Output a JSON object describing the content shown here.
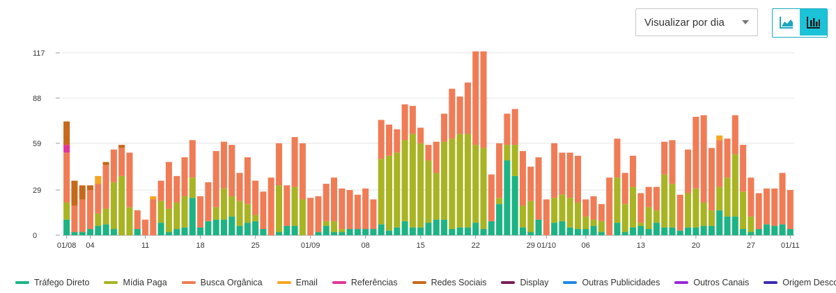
{
  "toolbar": {
    "view_select": {
      "value": "Visualizar por dia"
    },
    "view_toggle": [
      {
        "icon": "area-chart-icon",
        "active": false
      },
      {
        "icon": "bar-chart-icon",
        "active": true
      }
    ]
  },
  "chart_data": {
    "type": "bar",
    "stacked": true,
    "yticks": [
      0,
      29,
      59,
      88,
      117
    ],
    "ylim": [
      0,
      117
    ],
    "grid": true,
    "legend_position": "bottom",
    "xtick_labels": [
      {
        "i": 0,
        "label": "01/08"
      },
      {
        "i": 3,
        "label": "04"
      },
      {
        "i": 10,
        "label": "11"
      },
      {
        "i": 17,
        "label": "18"
      },
      {
        "i": 24,
        "label": "25"
      },
      {
        "i": 31,
        "label": "01/09"
      },
      {
        "i": 38,
        "label": "08"
      },
      {
        "i": 45,
        "label": "15"
      },
      {
        "i": 52,
        "label": "22"
      },
      {
        "i": 59,
        "label": "29"
      },
      {
        "i": 61,
        "label": "01/10"
      },
      {
        "i": 66,
        "label": "06"
      },
      {
        "i": 73,
        "label": "13"
      },
      {
        "i": 80,
        "label": "20"
      },
      {
        "i": 87,
        "label": "27"
      },
      {
        "i": 92,
        "label": "01/11"
      }
    ],
    "series": [
      {
        "name": "Tráfego Direto",
        "color": "#1db384",
        "values": [
          10,
          2,
          2,
          4,
          6,
          7,
          4,
          0,
          0,
          4,
          0,
          0,
          8,
          2,
          4,
          5,
          24,
          5,
          9,
          10,
          10,
          12,
          6,
          8,
          9,
          4,
          0,
          2,
          6,
          6,
          0,
          0,
          2,
          6,
          2,
          2,
          4,
          4,
          4,
          4,
          7,
          3,
          5,
          9,
          5,
          5,
          8,
          10,
          10,
          4,
          5,
          5,
          8,
          4,
          9,
          20,
          48,
          38,
          5,
          2,
          10,
          0,
          8,
          9,
          5,
          4,
          4,
          6,
          2,
          0,
          8,
          2,
          5,
          6,
          4,
          8,
          5,
          5,
          3,
          5,
          5,
          6,
          6,
          16,
          12,
          12,
          4,
          2,
          4,
          7,
          6,
          7,
          4
        ]
      },
      {
        "name": "Mídia Paga",
        "color": "#a8b422",
        "values": [
          11,
          0,
          0,
          0,
          8,
          10,
          30,
          38,
          18,
          0,
          0,
          0,
          14,
          15,
          17,
          20,
          13,
          0,
          0,
          8,
          20,
          13,
          16,
          12,
          4,
          0,
          0,
          30,
          0,
          25,
          23,
          0,
          0,
          3,
          7,
          2,
          0,
          0,
          0,
          0,
          42,
          48,
          48,
          52,
          60,
          54,
          40,
          30,
          50,
          58,
          60,
          60,
          50,
          52,
          0,
          4,
          10,
          20,
          14,
          20,
          0,
          0,
          16,
          17,
          19,
          17,
          8,
          4,
          7,
          0,
          29,
          18,
          26,
          2,
          14,
          8,
          34,
          28,
          0,
          22,
          25,
          15,
          10,
          15,
          25,
          40,
          24,
          10,
          0,
          0,
          0,
          0,
          0
        ]
      },
      {
        "name": "Busca Orgânica",
        "color": "#f07c56",
        "values": [
          32,
          17,
          21,
          25,
          19,
          28,
          21,
          18,
          35,
          12,
          10,
          23,
          13,
          30,
          17,
          25,
          24,
          20,
          25,
          36,
          30,
          33,
          18,
          30,
          22,
          24,
          37,
          27,
          26,
          32,
          36,
          24,
          23,
          24,
          28,
          26,
          25,
          22,
          26,
          19,
          25,
          20,
          15,
          23,
          18,
          10,
          10,
          20,
          18,
          32,
          24,
          33,
          60,
          62,
          30,
          35,
          20,
          23,
          35,
          22,
          40,
          23,
          35,
          27,
          29,
          30,
          11,
          15,
          11,
          37,
          25,
          20,
          20,
          19,
          13,
          15,
          21,
          28,
          23,
          28,
          46,
          56,
          40,
          30,
          25,
          25,
          30,
          25,
          23,
          23,
          24,
          33,
          25
        ]
      },
      {
        "name": "Email",
        "color": "#f5a623",
        "values": [
          0,
          0,
          0,
          0,
          5,
          0,
          0,
          0,
          0,
          0,
          0,
          2,
          0,
          0,
          0,
          0,
          0,
          0,
          0,
          0,
          0,
          0,
          0,
          0,
          0,
          0,
          0,
          0,
          0,
          0,
          0,
          0,
          0,
          0,
          0,
          0,
          0,
          0,
          0,
          0,
          0,
          0,
          0,
          0,
          0,
          0,
          0,
          0,
          0,
          0,
          0,
          0,
          0,
          0,
          0,
          0,
          0,
          0,
          0,
          0,
          0,
          0,
          0,
          0,
          0,
          0,
          0,
          0,
          0,
          0,
          0,
          0,
          0,
          0,
          0,
          0,
          0,
          0,
          0,
          0,
          0,
          0,
          0,
          3,
          0,
          0,
          0,
          0,
          0,
          0,
          0,
          0,
          0
        ]
      },
      {
        "name": "Referências",
        "color": "#e0359a",
        "values": [
          5,
          0,
          0,
          0,
          0,
          0,
          0,
          0,
          0,
          0,
          0,
          0,
          0,
          0,
          0,
          0,
          0,
          0,
          0,
          0,
          0,
          0,
          0,
          0,
          0,
          0,
          0,
          0,
          0,
          0,
          0,
          0,
          0,
          0,
          0,
          0,
          0,
          0,
          0,
          0,
          0,
          0,
          0,
          0,
          0,
          0,
          0,
          0,
          0,
          0,
          0,
          0,
          0,
          0,
          0,
          0,
          0,
          0,
          0,
          0,
          0,
          0,
          0,
          0,
          0,
          0,
          0,
          0,
          0,
          0,
          0,
          0,
          0,
          0,
          0,
          0,
          0,
          0,
          0,
          0,
          0,
          0,
          0,
          0,
          0,
          0,
          0,
          0,
          0,
          0,
          0,
          0,
          0
        ]
      },
      {
        "name": "Redes Sociais",
        "color": "#c6691c",
        "values": [
          15,
          16,
          9,
          3,
          0,
          2,
          0,
          2,
          0,
          0,
          0,
          0,
          0,
          0,
          0,
          0,
          0,
          0,
          0,
          0,
          0,
          0,
          0,
          0,
          0,
          0,
          0,
          0,
          0,
          0,
          0,
          0,
          0,
          0,
          0,
          0,
          0,
          0,
          0,
          0,
          0,
          0,
          0,
          0,
          0,
          0,
          0,
          0,
          0,
          0,
          0,
          0,
          0,
          0,
          0,
          0,
          0,
          0,
          0,
          0,
          0,
          0,
          0,
          0,
          0,
          0,
          0,
          0,
          0,
          0,
          0,
          0,
          0,
          0,
          0,
          0,
          0,
          0,
          0,
          0,
          0,
          0,
          0,
          0,
          0,
          0,
          0,
          0,
          0,
          0,
          0,
          0,
          0
        ]
      },
      {
        "name": "Display",
        "color": "#7a1e5c",
        "values": [
          0,
          0,
          0,
          0,
          0,
          0,
          0,
          0,
          0,
          0,
          0,
          0,
          0,
          0,
          0,
          0,
          0,
          0,
          0,
          0,
          0,
          0,
          0,
          0,
          0,
          0,
          0,
          0,
          0,
          0,
          0,
          0,
          0,
          0,
          0,
          0,
          0,
          0,
          0,
          0,
          0,
          0,
          0,
          0,
          0,
          0,
          0,
          0,
          0,
          0,
          0,
          0,
          0,
          0,
          0,
          0,
          0,
          0,
          0,
          0,
          0,
          0,
          0,
          0,
          0,
          0,
          0,
          0,
          0,
          0,
          0,
          0,
          0,
          0,
          0,
          0,
          0,
          0,
          0,
          0,
          0,
          0,
          0,
          0,
          0,
          0,
          0,
          0,
          0,
          0,
          0,
          0,
          0
        ]
      },
      {
        "name": "Outras Publicidades",
        "color": "#1e88e5",
        "values": [
          0,
          0,
          0,
          0,
          0,
          0,
          0,
          0,
          0,
          0,
          0,
          0,
          0,
          0,
          0,
          0,
          0,
          0,
          0,
          0,
          0,
          0,
          0,
          0,
          0,
          0,
          0,
          0,
          0,
          0,
          0,
          0,
          0,
          0,
          0,
          0,
          0,
          0,
          0,
          0,
          0,
          0,
          0,
          0,
          0,
          0,
          0,
          0,
          0,
          0,
          0,
          0,
          0,
          0,
          0,
          0,
          0,
          0,
          0,
          0,
          0,
          0,
          0,
          0,
          0,
          0,
          0,
          0,
          0,
          0,
          0,
          0,
          0,
          0,
          0,
          0,
          0,
          0,
          0,
          0,
          0,
          0,
          0,
          0,
          0,
          0,
          0,
          0,
          0,
          0,
          0,
          0,
          0
        ]
      },
      {
        "name": "Outros Canais",
        "color": "#9b27d6",
        "values": [
          0,
          0,
          0,
          0,
          0,
          0,
          0,
          0,
          0,
          0,
          0,
          0,
          0,
          0,
          0,
          0,
          0,
          0,
          0,
          0,
          0,
          0,
          0,
          0,
          0,
          0,
          0,
          0,
          0,
          0,
          0,
          0,
          0,
          0,
          0,
          0,
          0,
          0,
          0,
          0,
          0,
          0,
          0,
          0,
          0,
          0,
          0,
          0,
          0,
          0,
          0,
          0,
          0,
          0,
          0,
          0,
          0,
          0,
          0,
          0,
          0,
          0,
          0,
          0,
          0,
          0,
          0,
          0,
          0,
          0,
          0,
          0,
          0,
          0,
          0,
          0,
          0,
          0,
          0,
          0,
          0,
          0,
          0,
          0,
          0,
          0,
          0,
          0,
          0,
          0,
          0,
          0,
          0
        ]
      },
      {
        "name": "Origem Desconhecida",
        "color": "#3b2bb0",
        "values": [
          0,
          0,
          0,
          0,
          0,
          0,
          0,
          0,
          0,
          0,
          0,
          0,
          0,
          0,
          0,
          0,
          0,
          0,
          0,
          0,
          0,
          0,
          0,
          0,
          0,
          0,
          0,
          0,
          0,
          0,
          0,
          0,
          0,
          0,
          0,
          0,
          0,
          0,
          0,
          0,
          0,
          0,
          0,
          0,
          0,
          0,
          0,
          0,
          0,
          0,
          0,
          0,
          0,
          0,
          0,
          0,
          0,
          0,
          0,
          0,
          0,
          0,
          0,
          0,
          0,
          0,
          0,
          0,
          0,
          0,
          0,
          0,
          0,
          0,
          0,
          0,
          0,
          0,
          0,
          0,
          0,
          0,
          0,
          0,
          0,
          0,
          0,
          0,
          0,
          0,
          0,
          0,
          0
        ]
      }
    ]
  }
}
